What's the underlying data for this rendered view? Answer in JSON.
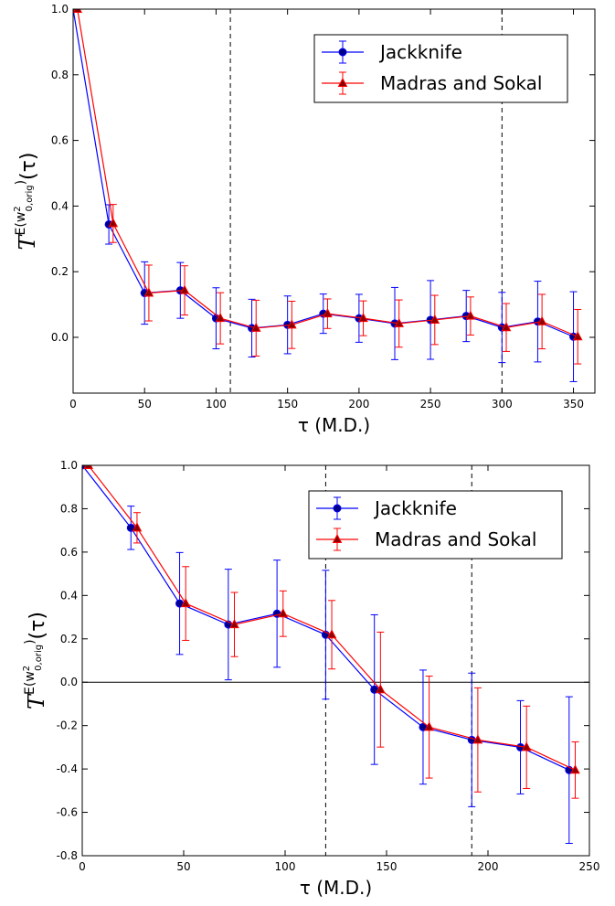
{
  "chart_data": [
    {
      "type": "errorbar-line",
      "xlabel": "τ (M.D.)",
      "ylabel": [
        "T",
        "E(w",
        "2",
        "0,orig",
        ")",
        "(τ)"
      ],
      "xlim": [
        0,
        365
      ],
      "ylim": [
        -0.17,
        1.0
      ],
      "xticks": [
        0,
        50,
        100,
        150,
        200,
        250,
        300,
        350
      ],
      "yticks": [
        {
          "value": 0.0,
          "label": "0.0"
        },
        0.2,
        0.4,
        0.6,
        0.8,
        {
          "value": 1.0,
          "label": "1.0"
        }
      ],
      "vlines": [
        110,
        300
      ],
      "grid": false,
      "legend": "upper right",
      "series": [
        {
          "name": "Jackknife",
          "color": "#0000ff",
          "marker": "circle",
          "x": [
            0,
            25,
            50,
            75,
            100,
            125,
            150,
            175,
            200,
            225,
            250,
            275,
            300,
            325,
            350
          ],
          "values": [
            1.0,
            0.344,
            0.135,
            0.143,
            0.058,
            0.028,
            0.038,
            0.072,
            0.058,
            0.042,
            0.053,
            0.065,
            0.03,
            0.048,
            0.002
          ],
          "errors": [
            0,
            0.06,
            0.095,
            0.085,
            0.093,
            0.088,
            0.088,
            0.06,
            0.073,
            0.11,
            0.12,
            0.078,
            0.107,
            0.123,
            0.137
          ]
        },
        {
          "name": "Madras and Sokal",
          "color": "#ff0000",
          "marker": "triangle",
          "x": [
            3,
            28,
            53,
            78,
            103,
            128,
            153,
            178,
            203,
            228,
            253,
            278,
            303,
            328,
            353
          ],
          "values": [
            1.0,
            0.347,
            0.135,
            0.143,
            0.058,
            0.028,
            0.038,
            0.072,
            0.058,
            0.042,
            0.053,
            0.065,
            0.03,
            0.048,
            0.002
          ],
          "errors": [
            0,
            0.058,
            0.085,
            0.075,
            0.078,
            0.085,
            0.072,
            0.045,
            0.053,
            0.072,
            0.075,
            0.058,
            0.073,
            0.083,
            0.083
          ]
        }
      ]
    },
    {
      "type": "errorbar-line",
      "xlabel": "τ (M.D.)",
      "ylabel": [
        "T",
        "E(w",
        "2",
        "0,orig",
        ")",
        "(τ)"
      ],
      "xlim": [
        0,
        250
      ],
      "ylim": [
        -0.8,
        1.0
      ],
      "xticks": [
        0,
        50,
        100,
        150,
        200,
        250
      ],
      "yticks": [
        -0.8,
        -0.6,
        -0.4,
        -0.2,
        {
          "value": 0.0,
          "label": "0.0"
        },
        0.2,
        0.4,
        0.6,
        0.8,
        {
          "value": 1.0,
          "label": "1.0"
        }
      ],
      "vlines": [
        120,
        192
      ],
      "hlines": [
        0
      ],
      "grid": false,
      "legend": "upper right",
      "series": [
        {
          "name": "Jackknife",
          "color": "#0000ff",
          "marker": "circle",
          "x": [
            0,
            24,
            48,
            72,
            96,
            120,
            144,
            168,
            192,
            216,
            240
          ],
          "values": [
            1.0,
            0.712,
            0.363,
            0.266,
            0.316,
            0.219,
            -0.034,
            -0.207,
            -0.266,
            -0.3,
            -0.405
          ],
          "errors": [
            0,
            0.1,
            0.235,
            0.255,
            0.247,
            0.297,
            0.345,
            0.263,
            0.308,
            0.215,
            0.338
          ]
        },
        {
          "name": "Madras and Sokal",
          "color": "#ff0000",
          "marker": "triangle",
          "x": [
            3,
            27,
            51,
            75,
            99,
            123,
            147,
            171,
            195,
            219,
            243
          ],
          "values": [
            1.0,
            0.712,
            0.363,
            0.266,
            0.316,
            0.219,
            -0.034,
            -0.207,
            -0.266,
            -0.3,
            -0.405
          ],
          "errors": [
            0,
            0.07,
            0.17,
            0.148,
            0.105,
            0.158,
            0.265,
            0.235,
            0.24,
            0.19,
            0.13
          ]
        }
      ]
    }
  ]
}
